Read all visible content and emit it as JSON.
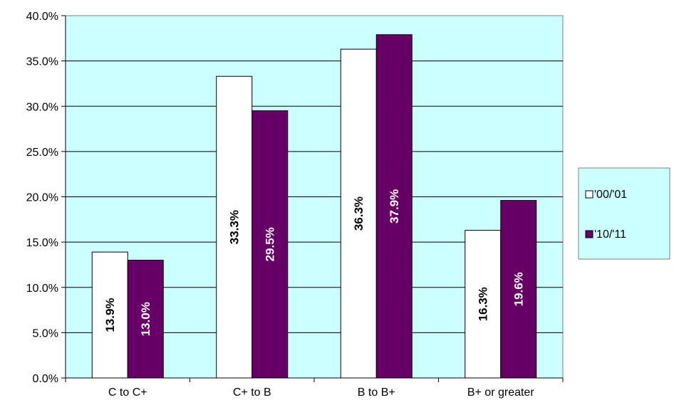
{
  "chart_data": {
    "type": "bar",
    "categories": [
      "C to C+",
      "C+ to B",
      "B to B+",
      "B+ or greater"
    ],
    "series": [
      {
        "name": "'00/'01",
        "values": [
          13.9,
          33.3,
          36.3,
          16.3
        ],
        "labels": [
          "13.9%",
          "33.3%",
          "36.3%",
          "16.3%"
        ],
        "color": "#FFFFFF",
        "label_color": "#000000"
      },
      {
        "name": "'10/'11",
        "values": [
          13.0,
          29.5,
          37.9,
          19.6
        ],
        "labels": [
          "13.0%",
          "29.5%",
          "37.9%",
          "19.6%"
        ],
        "color": "#660066",
        "label_color": "#FFFFFF"
      }
    ],
    "ylim": [
      0,
      40
    ],
    "yticks": [
      0,
      5,
      10,
      15,
      20,
      25,
      30,
      35,
      40
    ],
    "ytick_labels": [
      "0.0%",
      "5.0%",
      "10.0%",
      "15.0%",
      "20.0%",
      "25.0%",
      "30.0%",
      "35.0%",
      "40.0%"
    ],
    "title": "",
    "xlabel": "",
    "ylabel": "",
    "grid": true,
    "legend_position": "right",
    "plot_background": "#CCFFFF",
    "legend_background": "#CCFFFF"
  }
}
